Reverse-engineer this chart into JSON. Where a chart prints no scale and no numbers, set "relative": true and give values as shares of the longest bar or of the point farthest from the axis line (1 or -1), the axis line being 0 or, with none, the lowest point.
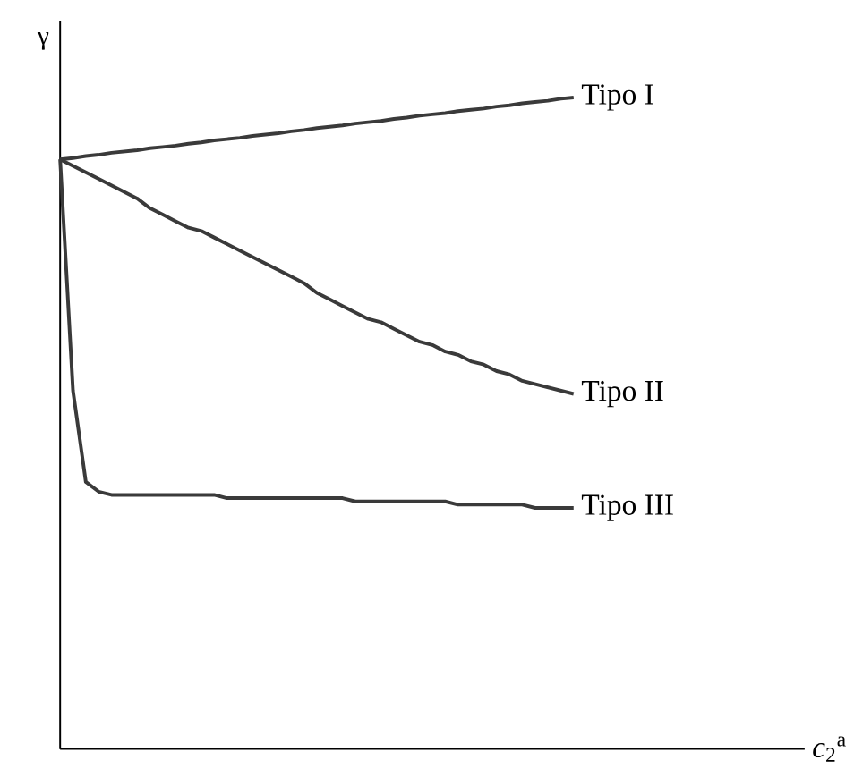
{
  "chart_data": {
    "type": "line",
    "relative": true,
    "ylabel": "γ",
    "annotations": [
      "*c*$_{2}$$^{a}$"
    ],
    "marker": "none",
    "line_style": "solid",
    "categories": [
      null,
      null,
      null,
      null,
      null,
      null,
      null,
      null,
      null,
      null,
      null,
      null,
      null,
      null,
      null,
      null,
      null,
      null,
      null,
      null,
      null,
      null,
      null,
      null,
      null,
      null,
      null,
      null,
      null,
      null,
      null,
      null,
      null,
      null,
      null,
      null,
      null,
      null,
      null,
      null,
      null
    ],
    "series": [
      {
        "name": "Tipo I",
        "color": "#3a3a3a",
        "values": [
          0.905,
          0.907,
          0.91,
          0.912,
          0.915,
          0.917,
          0.919,
          0.922,
          0.924,
          0.926,
          0.929,
          0.931,
          0.934,
          0.936,
          0.938,
          0.941,
          0.943,
          0.945,
          0.948,
          0.95,
          0.953,
          0.955,
          0.957,
          0.96,
          0.962,
          0.964,
          0.967,
          0.969,
          0.972,
          0.974,
          0.976,
          0.979,
          0.981,
          0.983,
          0.986,
          0.988,
          0.991,
          0.993,
          0.995,
          0.998,
          1
        ]
      },
      {
        "name": "Tipo II",
        "color": "#3a3a3a",
        "values": [
          0.905,
          0.895,
          0.885,
          0.875,
          0.865,
          0.855,
          0.845,
          0.83,
          0.82,
          0.81,
          0.8,
          0.795,
          0.785,
          0.775,
          0.765,
          0.755,
          0.745,
          0.735,
          0.725,
          0.715,
          0.7,
          0.69,
          0.68,
          0.67,
          0.66,
          0.655,
          0.645,
          0.635,
          0.625,
          0.62,
          0.61,
          0.605,
          0.595,
          0.59,
          0.58,
          0.575,
          0.565,
          0.56,
          0.555,
          0.55,
          0.545
        ]
      },
      {
        "name": "Tipo III",
        "color": "#3a3a3a",
        "values": [
          0.905,
          0.55,
          0.41,
          0.395,
          0.39,
          0.39,
          0.39,
          0.39,
          0.39,
          0.39,
          0.39,
          0.39,
          0.39,
          0.385,
          0.385,
          0.385,
          0.385,
          0.385,
          0.385,
          0.385,
          0.385,
          0.385,
          0.385,
          0.38,
          0.38,
          0.38,
          0.38,
          0.38,
          0.38,
          0.38,
          0.38,
          0.375,
          0.375,
          0.375,
          0.375,
          0.375,
          0.375,
          0.37,
          0.37,
          0.37,
          0.37
        ]
      }
    ]
  }
}
